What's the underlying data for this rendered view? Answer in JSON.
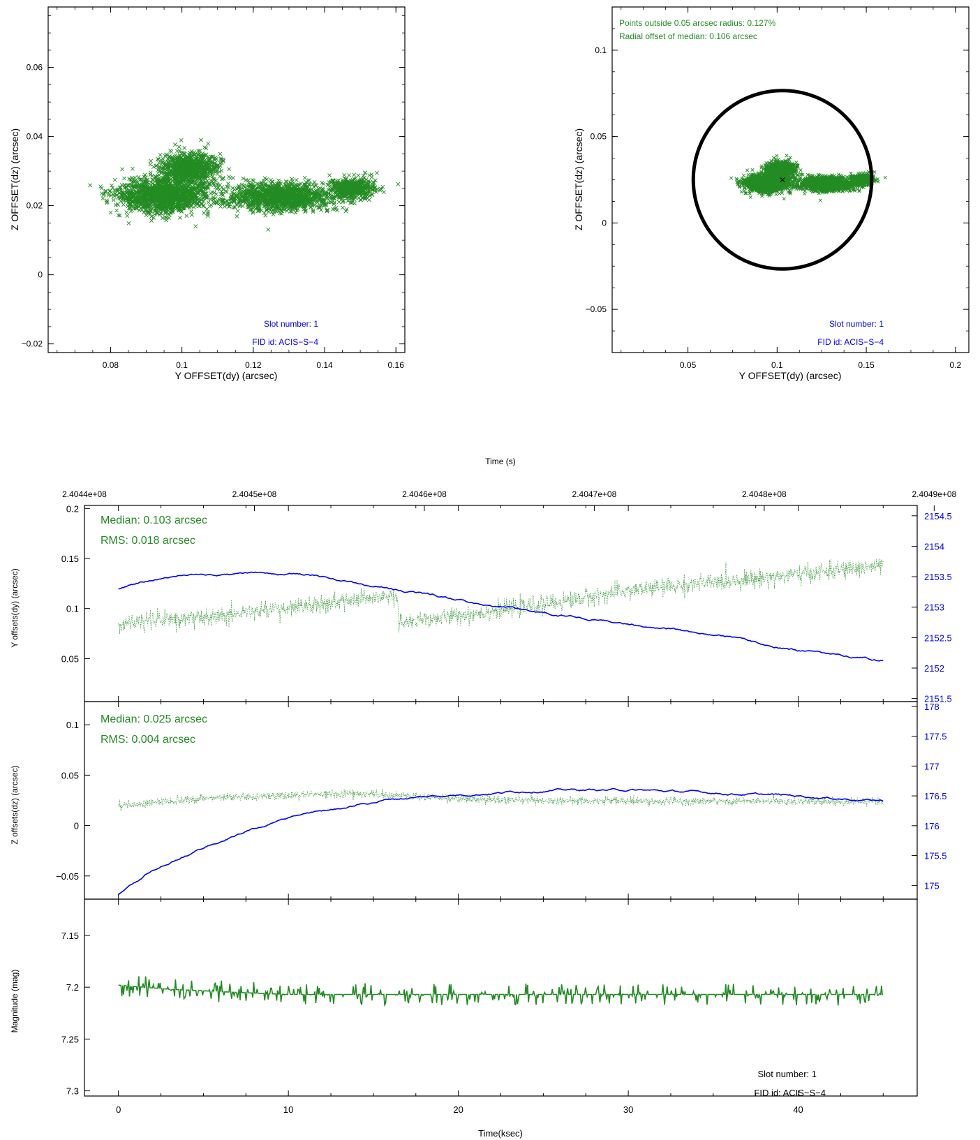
{
  "colors": {
    "green": "#228B22",
    "blue": "#0000FF",
    "axis": "#000000"
  },
  "chart_data": [
    {
      "type": "scatter",
      "id": "scatter-left",
      "xlabel": "Y OFFSET(dy) (arcsec)",
      "ylabel": "Z OFFSET(dz) (arcsec)",
      "xlim": [
        0.0625,
        0.1625
      ],
      "ylim": [
        -0.0225,
        0.0775
      ],
      "xticks": [
        0.08,
        0.1,
        0.12,
        0.14,
        0.16
      ],
      "xtick_labels": [
        "0.08",
        "0.1",
        "0.12",
        "0.14",
        "0.16"
      ],
      "yticks": [
        -0.02,
        0,
        0.02,
        0.04,
        0.06
      ],
      "ytick_labels": [
        "−0.02",
        "0",
        "0.02",
        "0.04",
        "0.06"
      ],
      "annotations": [
        "Slot number: 1",
        "FID id: ACIS−S−4"
      ],
      "clusters": [
        {
          "cx": 0.095,
          "cy": 0.023,
          "sx": 0.012,
          "sy": 0.0035,
          "n": 1600
        },
        {
          "cx": 0.102,
          "cy": 0.031,
          "sx": 0.007,
          "sy": 0.003,
          "n": 900
        },
        {
          "cx": 0.128,
          "cy": 0.0225,
          "sx": 0.012,
          "sy": 0.0028,
          "n": 1400
        },
        {
          "cx": 0.148,
          "cy": 0.025,
          "sx": 0.006,
          "sy": 0.0022,
          "n": 500
        }
      ]
    },
    {
      "type": "scatter",
      "id": "scatter-right",
      "xlabel": "Y OFFSET(dy) (arcsec)",
      "ylabel": "Z OFFSET(dz) (arcsec)",
      "xlim": [
        0.0075,
        0.2075
      ],
      "ylim": [
        -0.075,
        0.125
      ],
      "xticks": [
        0.05,
        0.1,
        0.15,
        0.2
      ],
      "xtick_labels": [
        "0.05",
        "0.1",
        "0.15",
        "0.2"
      ],
      "yticks": [
        -0.05,
        0,
        0.05,
        0.1
      ],
      "ytick_labels": [
        "−0.05",
        "0",
        "0.05",
        "0.1"
      ],
      "circle": {
        "cx": 0.103,
        "cy": 0.025,
        "r": 0.05
      },
      "median_marker": {
        "x": 0.103,
        "y": 0.025
      },
      "stats_lines": [
        "Points outside 0.05 arcsec radius: 0.127%",
        "Radial offset of median: 0.106 arcsec"
      ],
      "annotations": [
        "Slot number: 1",
        "FID id: ACIS−S−4"
      ]
    },
    {
      "type": "line",
      "id": "time-series",
      "top_xlabel": "Time (s)",
      "top_xtick_labels": [
        "2.4044e+08",
        "2.4045e+08",
        "2.4046e+08",
        "2.4047e+08",
        "2.4048e+08",
        "2.4049e+08"
      ],
      "top_xtick_values": [
        240440000,
        240450000,
        240460000,
        240470000,
        240480000,
        240490000
      ],
      "time_start_s": 240442000,
      "xlabel": "Time(ksec)",
      "xlim": [
        -2,
        47
      ],
      "xticks": [
        0,
        10,
        20,
        30,
        40
      ],
      "xtick_labels": [
        "0",
        "10",
        "20",
        "30",
        "40"
      ],
      "panels": [
        {
          "ylabel": "Y offsets(dy) (arcsec)",
          "ylim": [
            0.007,
            0.203
          ],
          "yticks": [
            0.05,
            0.1,
            0.15,
            0.2
          ],
          "ytick_labels": [
            "0.05",
            "0.1",
            "0.15",
            "0.2"
          ],
          "right_ylim": [
            2151.45,
            2154.67
          ],
          "right_yticks": [
            2151.5,
            2152,
            2152.5,
            2153,
            2153.5,
            2154,
            2154.5
          ],
          "right_ytick_labels": [
            "2151.5",
            "2152",
            "2152.5",
            "2153",
            "2153.5",
            "2154",
            "2154.5"
          ],
          "stats": [
            "Median: 0.103 arcsec",
            "RMS: 0.018 arcsec"
          ],
          "green_trend": [
            [
              0,
              0.085
            ],
            [
              5,
              0.092
            ],
            [
              10,
              0.1
            ],
            [
              14,
              0.108
            ],
            [
              16.4,
              0.112
            ],
            [
              16.5,
              0.085
            ],
            [
              20,
              0.093
            ],
            [
              25,
              0.104
            ],
            [
              30,
              0.118
            ],
            [
              35,
              0.126
            ],
            [
              40,
              0.134
            ],
            [
              45,
              0.143
            ]
          ],
          "green_noise": 0.008,
          "blue_trend": [
            [
              0,
              2153.3
            ],
            [
              3,
              2153.52
            ],
            [
              8,
              2153.58
            ],
            [
              11,
              2153.53
            ],
            [
              14,
              2153.42
            ],
            [
              18,
              2153.2
            ],
            [
              24,
              2152.95
            ],
            [
              30,
              2152.72
            ],
            [
              36,
              2152.5
            ],
            [
              40,
              2152.3
            ],
            [
              45,
              2152.12
            ]
          ]
        },
        {
          "ylabel": "Z offsets(dz) (arcsec)",
          "ylim": [
            -0.073,
            0.123
          ],
          "yticks": [
            -0.05,
            0,
            0.05,
            0.1
          ],
          "ytick_labels": [
            "−0.05",
            "0",
            "0.05",
            "0.1"
          ],
          "right_ylim": [
            174.77,
            178.08
          ],
          "right_yticks": [
            175,
            175.5,
            176,
            176.5,
            177,
            177.5,
            178
          ],
          "right_ytick_labels": [
            "175",
            "175.5",
            "176",
            "176.5",
            "177",
            "177.5",
            "178"
          ],
          "stats": [
            "Median: 0.025 arcsec",
            "RMS: 0.004 arcsec"
          ],
          "green_trend": [
            [
              0,
              0.02
            ],
            [
              5,
              0.027
            ],
            [
              10,
              0.03
            ],
            [
              14,
              0.032
            ],
            [
              16.5,
              0.03
            ],
            [
              20,
              0.026
            ],
            [
              30,
              0.024
            ],
            [
              45,
              0.024
            ]
          ],
          "green_noise": 0.0035,
          "blue_trend": [
            [
              0,
              174.85
            ],
            [
              2,
              175.25
            ],
            [
              5,
              175.65
            ],
            [
              8,
              175.95
            ],
            [
              11,
              176.2
            ],
            [
              14,
              176.35
            ],
            [
              16,
              176.45
            ],
            [
              20,
              176.52
            ],
            [
              25,
              176.6
            ],
            [
              30,
              176.6
            ],
            [
              35,
              176.55
            ],
            [
              40,
              176.5
            ],
            [
              45,
              176.42
            ]
          ]
        },
        {
          "ylabel": "Magnitude (mag)",
          "ylim": [
            7.305,
            7.115
          ],
          "yticks": [
            7.15,
            7.2,
            7.25,
            7.3
          ],
          "ytick_labels": [
            "7.15",
            "7.2",
            "7.25",
            "7.3"
          ],
          "green_trend": [
            [
              0,
              7.198
            ],
            [
              3,
              7.202
            ],
            [
              7,
              7.205
            ],
            [
              10,
              7.207
            ],
            [
              20,
              7.207
            ],
            [
              30,
              7.207
            ],
            [
              45,
              7.207
            ]
          ],
          "green_noise": 0.006,
          "annotations": [
            "Slot number: 1",
            "FID id: ACIS−S−4"
          ]
        }
      ]
    }
  ]
}
